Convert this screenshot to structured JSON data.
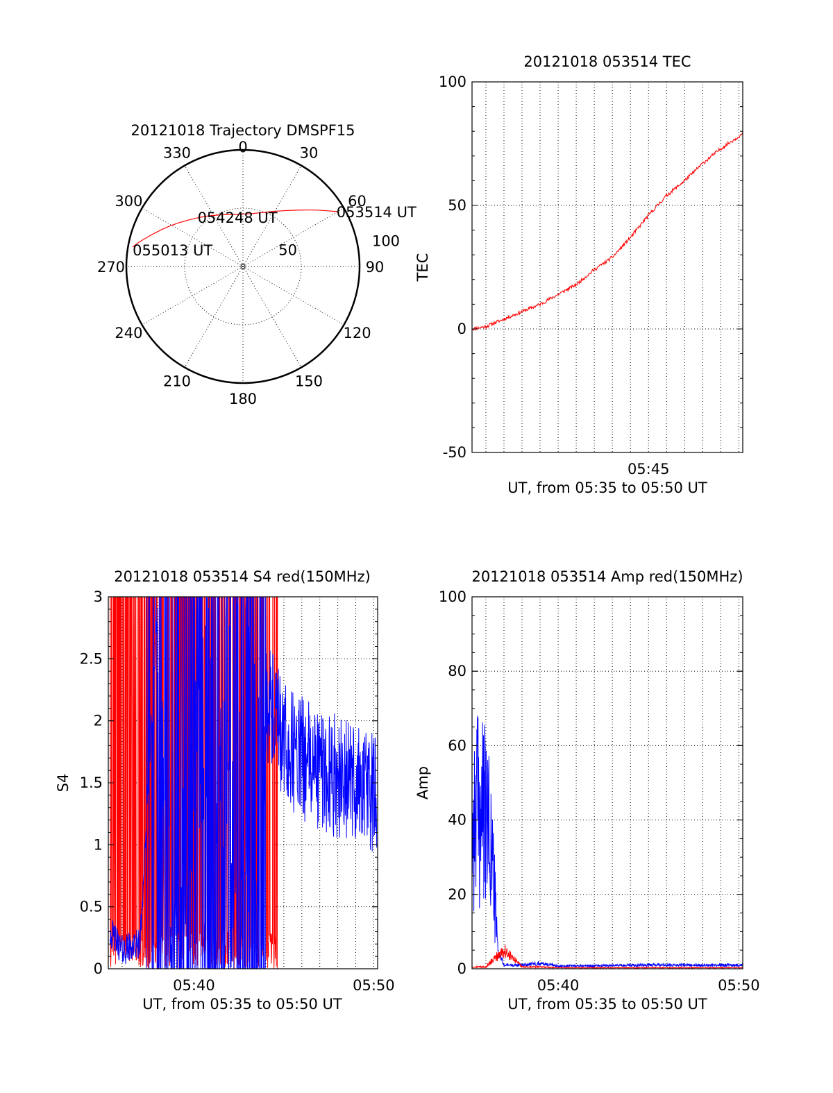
{
  "colors": {
    "red": "#ff0000",
    "blue": "#0000ff",
    "axis": "#000000",
    "grid": "#000000"
  },
  "chart_data": [
    {
      "id": "trajectory",
      "type": "polar",
      "title": "20121018 Trajectory DMSPF15",
      "angle_ticks": [
        "0",
        "30",
        "60",
        "90",
        "120",
        "150",
        "180",
        "210",
        "240",
        "270",
        "300",
        "330"
      ],
      "radial_ticks": [
        "50",
        "100"
      ],
      "rlim": [
        0,
        100
      ],
      "grid": true,
      "track": {
        "color": "red",
        "points": [
          {
            "az": 60,
            "r": 94
          },
          {
            "az": 52,
            "r": 79
          },
          {
            "az": 41,
            "r": 64
          },
          {
            "az": 27,
            "r": 53
          },
          {
            "az": 10,
            "r": 46
          },
          {
            "az": -6,
            "r": 45
          },
          {
            "az": -22,
            "r": 48
          },
          {
            "az": -37,
            "r": 54
          },
          {
            "az": -50,
            "r": 62
          },
          {
            "az": -61,
            "r": 72
          },
          {
            "az": -70,
            "r": 82
          },
          {
            "az": -77,
            "r": 92
          },
          {
            "az": -80,
            "r": 96
          }
        ]
      },
      "annotations": [
        {
          "text": "053514 UT",
          "az": 60,
          "r": 94
        },
        {
          "text": "054248 UT",
          "az": -6,
          "r": 45
        },
        {
          "text": "055013 UT",
          "az": -80,
          "r": 96
        }
      ]
    },
    {
      "id": "tec",
      "type": "line",
      "title": "20121018 053514 TEC",
      "xlabel": "UT, from 05:35 to 05:50 UT",
      "ylabel": "TEC",
      "xlim": [
        "05:35:14",
        "05:50:13"
      ],
      "ylim": [
        -50,
        100
      ],
      "x_ticks": [
        "05:45"
      ],
      "y_ticks": [
        -50,
        0,
        50,
        100
      ],
      "grid": true,
      "series": [
        {
          "color": "red",
          "x": [
            "05:35:14",
            "05:36:00",
            "05:37:00",
            "05:38:00",
            "05:39:00",
            "05:40:00",
            "05:41:00",
            "05:42:00",
            "05:43:00",
            "05:44:00",
            "05:45:00",
            "05:46:00",
            "05:47:00",
            "05:48:00",
            "05:49:00",
            "05:50:13"
          ],
          "values": [
            0,
            1,
            4,
            7,
            10,
            14,
            18,
            24,
            29,
            37,
            46,
            54,
            60,
            67,
            73,
            79
          ]
        }
      ]
    },
    {
      "id": "s4",
      "type": "line",
      "title": "20121018 053514 S4 red(150MHz)",
      "xlabel": "UT, from 05:35 to 05:50 UT",
      "ylabel": "S4",
      "xlim": [
        "05:35:14",
        "05:50:13"
      ],
      "ylim": [
        0,
        3
      ],
      "x_ticks": [
        "05:40",
        "05:50"
      ],
      "y_ticks": [
        "0",
        "0.5",
        "1",
        "1.5",
        "2",
        "2.5",
        "3"
      ],
      "grid": true,
      "series": [
        {
          "color": "red",
          "x": [
            "05:35:20",
            "05:36:00",
            "05:37:00",
            "05:38:00",
            "05:39:00",
            "05:40:00",
            "05:41:00",
            "05:42:00",
            "05:43:00",
            "05:44:00",
            "05:44:40"
          ],
          "values": [
            3,
            3,
            3,
            3,
            3,
            3,
            3,
            3,
            3,
            3,
            3
          ]
        },
        {
          "color": "blue",
          "x": [
            "05:35:20",
            "05:36:00",
            "05:37:00",
            "05:38:00",
            "05:39:00",
            "05:40:00",
            "05:41:00",
            "05:42:00",
            "05:43:00",
            "05:44:00",
            "05:45:00",
            "05:46:00",
            "05:47:00",
            "05:48:00",
            "05:49:00",
            "05:50:10"
          ],
          "values": [
            0.3,
            0.15,
            0.2,
            3,
            0.45,
            3,
            3,
            3,
            3,
            2.2,
            1.8,
            1.7,
            1.6,
            1.55,
            1.5,
            1.4
          ]
        }
      ]
    },
    {
      "id": "amp",
      "type": "line",
      "title": "20121018 053514 Amp red(150MHz)",
      "xlabel": "UT, from 05:35 to 05:50 UT",
      "ylabel": "Amp",
      "xlim": [
        "05:35:14",
        "05:50:13"
      ],
      "ylim": [
        0,
        100
      ],
      "x_ticks": [
        "05:40",
        "05:50"
      ],
      "y_ticks": [
        0,
        20,
        40,
        60,
        80,
        100
      ],
      "grid": true,
      "series": [
        {
          "color": "blue",
          "x": [
            "05:35:14",
            "05:35:30",
            "05:36:00",
            "05:36:20",
            "05:36:40",
            "05:37:00",
            "05:38:00",
            "05:39:00",
            "05:40:00",
            "05:42:00",
            "05:44:00",
            "05:46:00",
            "05:48:00",
            "05:50:13"
          ],
          "values": [
            45,
            55,
            50,
            40,
            5,
            1,
            1,
            1.5,
            0.8,
            0.8,
            1,
            1,
            1,
            1
          ]
        },
        {
          "color": "red",
          "x": [
            "05:35:14",
            "05:36:00",
            "05:37:00",
            "05:38:00",
            "05:39:00",
            "05:40:00",
            "05:42:00",
            "05:44:00",
            "05:46:00",
            "05:50:13"
          ],
          "values": [
            0.5,
            0.5,
            5,
            0.5,
            0.5,
            0.3,
            0.3,
            0.3,
            0.3,
            0.3
          ]
        }
      ]
    }
  ]
}
